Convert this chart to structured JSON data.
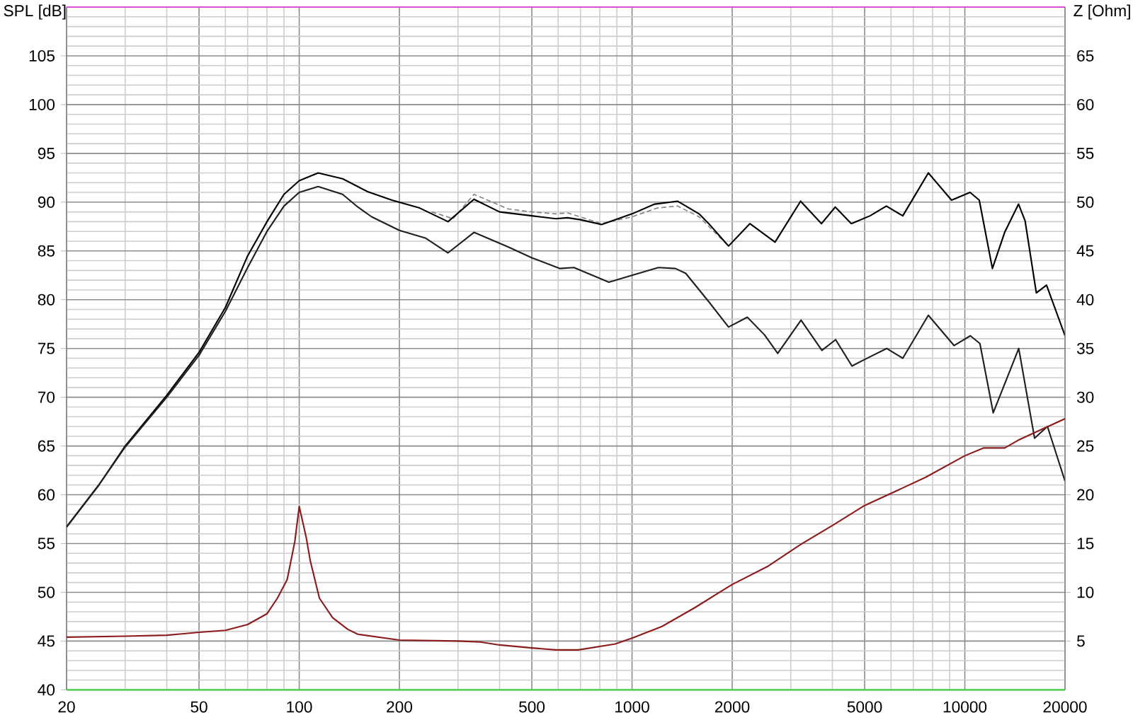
{
  "chart_data": {
    "type": "line",
    "ylabel": "SPL [dB]",
    "y2label": "Z [Ohm]",
    "xlim": [
      20,
      20000
    ],
    "xticks": [
      20,
      50,
      100,
      200,
      500,
      1000,
      2000,
      5000,
      10000,
      20000
    ],
    "ylim": [
      40,
      110
    ],
    "yticks": [
      40,
      45,
      50,
      55,
      60,
      65,
      70,
      75,
      80,
      85,
      90,
      95,
      100,
      105
    ],
    "y2lim": [
      0,
      70
    ],
    "y2ticks": [
      5,
      10,
      15,
      20,
      25,
      30,
      35,
      40,
      45,
      50,
      55,
      60,
      65
    ],
    "log": "x",
    "grid": true,
    "series": [
      {
        "color": "#808080",
        "line_style": "dashed",
        "x": [
          250,
          290,
          335,
          425,
          500,
          590,
          640,
          810,
          1000,
          1190,
          1370,
          1590,
          1950
        ],
        "values": [
          89.0,
          88.3,
          90.8,
          89.3,
          89.0,
          88.8,
          88.9,
          87.8,
          88.5,
          89.4,
          89.6,
          88.5,
          85.5
        ]
      },
      {
        "color": "#000000",
        "line_style": "solid",
        "x": [
          20,
          25,
          30,
          40,
          50,
          60,
          70,
          80,
          90,
          100,
          114,
          135,
          160,
          190,
          230,
          280,
          335,
          400,
          500,
          590,
          640,
          700,
          810,
          1000,
          1170,
          1370,
          1590,
          1700,
          1950,
          2260,
          2690,
          3210,
          3710,
          4080,
          4560,
          5190,
          5810,
          6510,
          7770,
          9120,
          10370,
          11050,
          12100,
          13170,
          14500,
          15170,
          16400,
          17600,
          20000
        ],
        "values": [
          56.7,
          61.0,
          65.0,
          70.2,
          74.6,
          79.2,
          84.5,
          88.0,
          90.8,
          92.2,
          93.0,
          92.4,
          91.1,
          90.2,
          89.4,
          88.0,
          90.3,
          89.0,
          88.6,
          88.3,
          88.4,
          88.2,
          87.7,
          88.8,
          89.8,
          90.1,
          88.8,
          87.8,
          85.5,
          87.8,
          85.9,
          90.1,
          87.8,
          89.5,
          87.8,
          88.6,
          89.6,
          88.6,
          93.0,
          90.2,
          91.0,
          90.2,
          83.2,
          86.9,
          89.8,
          88.1,
          80.7,
          81.5,
          76.3
        ]
      },
      {
        "color": "#202020",
        "line_style": "solid",
        "x": [
          20,
          25,
          30,
          40,
          50,
          60,
          70,
          80,
          90,
          100,
          114,
          135,
          150,
          165,
          200,
          240,
          280,
          335,
          425,
          500,
          606,
          669,
          852,
          1000,
          1200,
          1350,
          1450,
          1700,
          1950,
          2220,
          2500,
          2740,
          3220,
          3720,
          4090,
          4580,
          5020,
          5820,
          6510,
          7770,
          9280,
          10390,
          11100,
          12170,
          14520,
          16200,
          17710,
          20000
        ],
        "values": [
          56.7,
          61.0,
          64.9,
          70.0,
          74.3,
          78.8,
          83.3,
          87.0,
          89.6,
          91.0,
          91.6,
          90.8,
          89.5,
          88.5,
          87.1,
          86.3,
          84.8,
          86.9,
          85.4,
          84.3,
          83.2,
          83.3,
          81.8,
          82.5,
          83.3,
          83.2,
          82.7,
          79.8,
          77.2,
          78.2,
          76.4,
          74.5,
          77.9,
          74.8,
          75.9,
          73.2,
          73.9,
          75.0,
          74.0,
          78.4,
          75.3,
          76.3,
          75.5,
          68.4,
          75.0,
          65.8,
          67.0,
          61.4
        ]
      },
      {
        "color": "#8c1c1c",
        "line_style": "solid",
        "axis": "y2",
        "x": [
          20,
          30,
          40,
          50,
          60,
          70,
          80,
          86,
          92,
          97,
          100,
          105,
          108,
          115,
          126,
          140,
          150,
          200,
          300,
          350,
          400,
          500,
          590,
          690,
          890,
          1000,
          1230,
          1540,
          2000,
          2570,
          3210,
          4020,
          5000,
          6510,
          7630,
          10000,
          11400,
          13170,
          14480,
          20000
        ],
        "values": [
          5.4,
          5.5,
          5.6,
          5.9,
          6.1,
          6.7,
          7.8,
          9.4,
          11.3,
          15.2,
          18.8,
          15.6,
          13.2,
          9.4,
          7.4,
          6.2,
          5.7,
          5.1,
          5.0,
          4.9,
          4.6,
          4.3,
          4.1,
          4.1,
          4.7,
          5.3,
          6.5,
          8.4,
          10.8,
          12.7,
          14.9,
          16.9,
          18.9,
          20.7,
          21.8,
          24.0,
          24.8,
          24.8,
          25.6,
          27.8
        ]
      }
    ]
  }
}
